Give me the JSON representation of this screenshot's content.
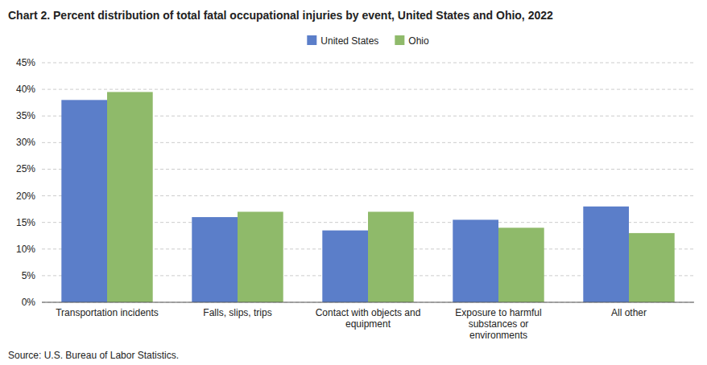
{
  "chart_data": {
    "type": "bar",
    "title": "Chart 2. Percent distribution of total fatal occupational injuries by event, United States and Ohio, 2022",
    "source": "Source: U.S. Bureau of Labor Statistics.",
    "categories": [
      "Transportation incidents",
      "Falls, slips, trips",
      "Contact with objects and\nequipment",
      "Exposure to harmful\nsubstances or\nenvironments",
      "All other"
    ],
    "series": [
      {
        "name": "United States",
        "color": "#5b7ec9",
        "values": [
          38.0,
          16.0,
          13.5,
          15.5,
          18.0
        ]
      },
      {
        "name": "Ohio",
        "color": "#8fba6a",
        "values": [
          39.5,
          17.0,
          17.0,
          14.0,
          13.0
        ]
      }
    ],
    "ylim": [
      0,
      45
    ],
    "yticks": [
      {
        "value": 0,
        "label": "0%"
      },
      {
        "value": 5,
        "label": "5%"
      },
      {
        "value": 10,
        "label": "10%"
      },
      {
        "value": 15,
        "label": "15%"
      },
      {
        "value": 20,
        "label": "20%"
      },
      {
        "value": 25,
        "label": "25%"
      },
      {
        "value": 30,
        "label": "30%"
      },
      {
        "value": 35,
        "label": "35%"
      },
      {
        "value": 40,
        "label": "40%"
      },
      {
        "value": 45,
        "label": "45%"
      }
    ],
    "grid": true,
    "legend": "top"
  }
}
